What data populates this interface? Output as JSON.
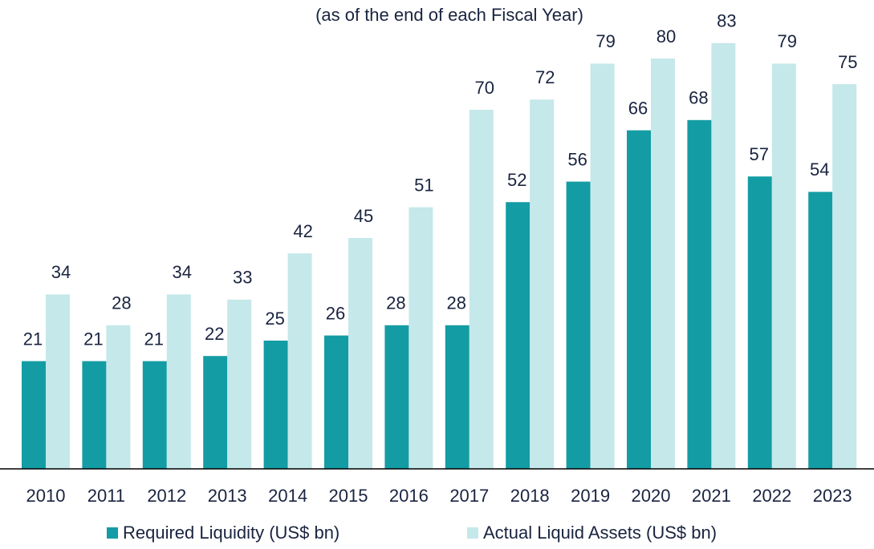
{
  "chart_data": {
    "type": "bar",
    "subtitle": "(as of the end of each Fiscal Year)",
    "categories": [
      "2010",
      "2011",
      "2012",
      "2013",
      "2014",
      "2015",
      "2016",
      "2017",
      "2018",
      "2019",
      "2020",
      "2021",
      "2022",
      "2023"
    ],
    "series": [
      {
        "name": "Required Liquidity (US$ bn)",
        "color": "#149ca4",
        "values": [
          21,
          21,
          21,
          22,
          25,
          26,
          28,
          28,
          52,
          56,
          66,
          68,
          57,
          54
        ]
      },
      {
        "name": "Actual Liquid Assets (US$ bn)",
        "color": "#c5e8ea",
        "values": [
          34,
          28,
          34,
          33,
          42,
          45,
          51,
          70,
          72,
          79,
          80,
          83,
          79,
          75
        ]
      }
    ],
    "ylim": [
      0,
      90
    ],
    "legend": "bottom"
  }
}
